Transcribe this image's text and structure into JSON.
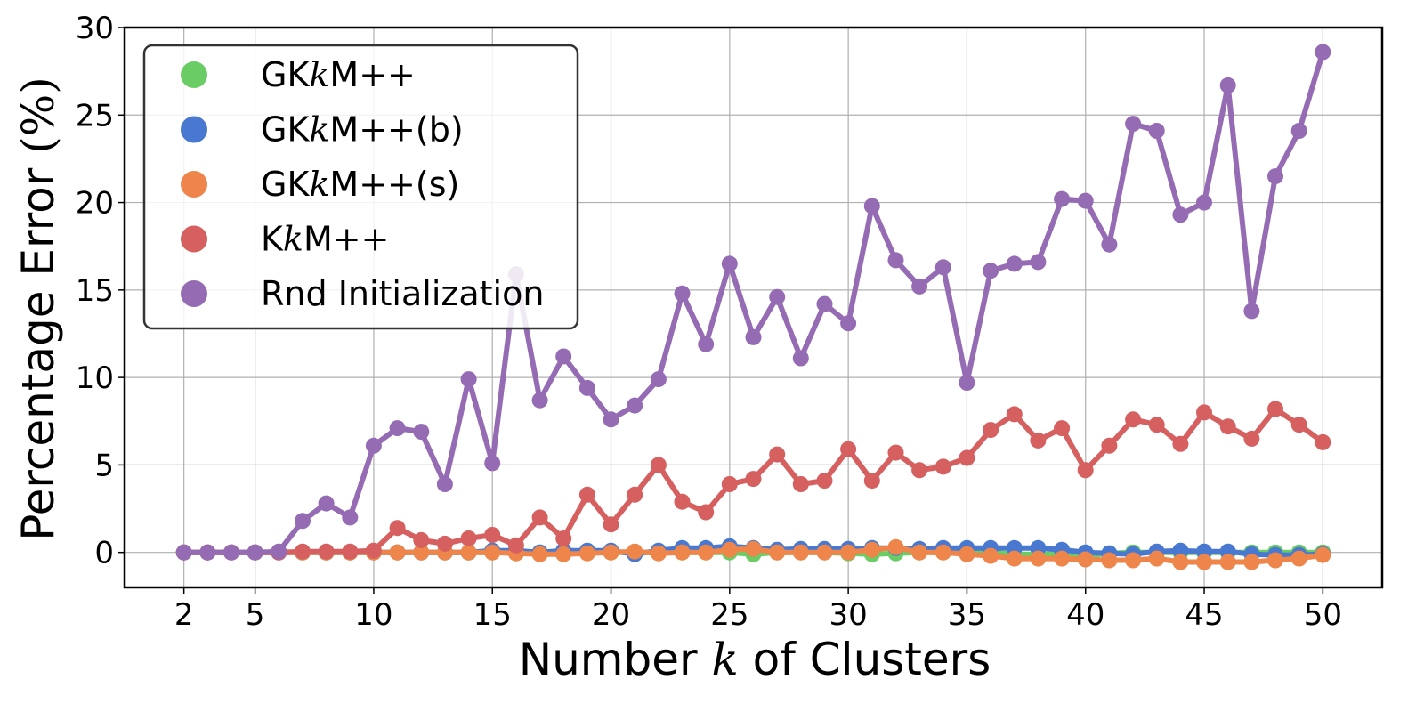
{
  "chart_data": {
    "type": "line",
    "xlabel": {
      "pre": "Number ",
      "var": "k",
      "post": " of Clusters"
    },
    "ylabel": {
      "main": "Percentage Error ",
      "unit": "(%)"
    },
    "xlim": [
      -0.5,
      52.5
    ],
    "ylim": [
      -2,
      30
    ],
    "xticks": [
      2,
      5,
      10,
      15,
      20,
      25,
      30,
      35,
      40,
      45,
      50
    ],
    "yticks": [
      0,
      5,
      10,
      15,
      20,
      25,
      30
    ],
    "grid": true,
    "legend_position": "top-left",
    "x": [
      2,
      3,
      4,
      5,
      6,
      7,
      8,
      9,
      10,
      11,
      12,
      13,
      14,
      15,
      16,
      17,
      18,
      19,
      20,
      21,
      22,
      23,
      24,
      25,
      26,
      27,
      28,
      29,
      30,
      31,
      32,
      33,
      34,
      35,
      36,
      37,
      38,
      39,
      40,
      41,
      42,
      43,
      44,
      45,
      46,
      47,
      48,
      49,
      50
    ],
    "series": [
      {
        "name_pre": "GK",
        "name_var": "k",
        "name_post": "M",
        "name_suffix": "",
        "color": "#6acc64",
        "values": [
          0,
          0,
          0,
          0,
          0,
          0,
          0,
          0,
          0,
          0,
          0,
          0,
          0,
          0,
          0,
          0,
          0,
          0,
          0,
          0,
          0,
          0,
          0,
          0,
          -0.1,
          0,
          0,
          0,
          -0.05,
          -0.1,
          -0.05,
          0,
          0,
          0,
          0,
          -0.1,
          -0.1,
          -0.1,
          -0.2,
          -0.05,
          0,
          0,
          0,
          0,
          0,
          0,
          0,
          0,
          0
        ]
      },
      {
        "name_pre": "GK",
        "name_var": "k",
        "name_post": "M",
        "name_suffix": "(b)",
        "color": "#4878d0",
        "values": [
          0,
          0,
          0,
          0,
          0,
          0,
          0,
          0,
          0,
          0,
          0,
          0,
          0,
          0.1,
          0.1,
          0,
          0.1,
          0.1,
          0.1,
          -0.1,
          0.1,
          0.25,
          0.25,
          0.35,
          0.25,
          0.15,
          0.2,
          0.2,
          0.2,
          0.25,
          0.25,
          0.2,
          0.25,
          0.25,
          0.25,
          0.25,
          0.25,
          0.15,
          0,
          -0.05,
          -0.1,
          0.05,
          0.1,
          0.05,
          0.05,
          -0.1,
          -0.15,
          -0.15,
          -0.1
        ]
      },
      {
        "name_pre": "GK",
        "name_var": "k",
        "name_post": "M",
        "name_suffix": "(s)",
        "color": "#ee854a",
        "values": [
          0,
          0,
          0,
          0,
          0,
          0,
          0,
          0,
          0,
          0,
          0,
          0,
          0,
          0,
          -0.05,
          -0.1,
          -0.1,
          -0.05,
          0,
          0.05,
          -0.05,
          0,
          0,
          0.15,
          0.2,
          0,
          0,
          0,
          0,
          0.15,
          0.3,
          0,
          0,
          -0.1,
          -0.2,
          -0.35,
          -0.35,
          -0.35,
          -0.4,
          -0.45,
          -0.45,
          -0.35,
          -0.55,
          -0.55,
          -0.55,
          -0.55,
          -0.45,
          -0.35,
          -0.15
        ]
      },
      {
        "name_pre": "K",
        "name_var": "k",
        "name_post": "M",
        "name_suffix": "",
        "color": "#d65f5f",
        "values": [
          0,
          0,
          0,
          0,
          0,
          0.05,
          0.05,
          0.05,
          0.1,
          1.4,
          0.7,
          0.5,
          0.8,
          1.0,
          0.4,
          2.0,
          0.8,
          3.3,
          1.6,
          3.3,
          5.0,
          2.9,
          2.3,
          3.9,
          4.2,
          5.6,
          3.9,
          4.1,
          5.9,
          4.1,
          5.7,
          4.7,
          4.9,
          5.4,
          7.0,
          7.9,
          6.4,
          7.1,
          4.7,
          6.1,
          7.6,
          7.3,
          6.2,
          8.0,
          7.2,
          6.5,
          8.2,
          7.3,
          6.3
        ]
      },
      {
        "name_pre": "Rnd Initialization",
        "name_var": "",
        "name_post": "",
        "name_suffix": "",
        "color": "#956cb4",
        "values": [
          0,
          0,
          0,
          0,
          0.05,
          1.8,
          2.8,
          2.0,
          6.1,
          7.1,
          6.9,
          3.9,
          9.9,
          5.1,
          15.9,
          8.7,
          11.2,
          9.4,
          7.6,
          8.4,
          9.9,
          14.8,
          11.9,
          16.5,
          12.3,
          14.6,
          11.1,
          14.2,
          13.1,
          19.8,
          16.7,
          15.2,
          16.3,
          9.7,
          16.1,
          16.5,
          16.6,
          20.2,
          20.1,
          17.6,
          24.5,
          24.1,
          19.3,
          20.0,
          26.7,
          13.8,
          21.5,
          24.1,
          28.6
        ]
      }
    ]
  }
}
